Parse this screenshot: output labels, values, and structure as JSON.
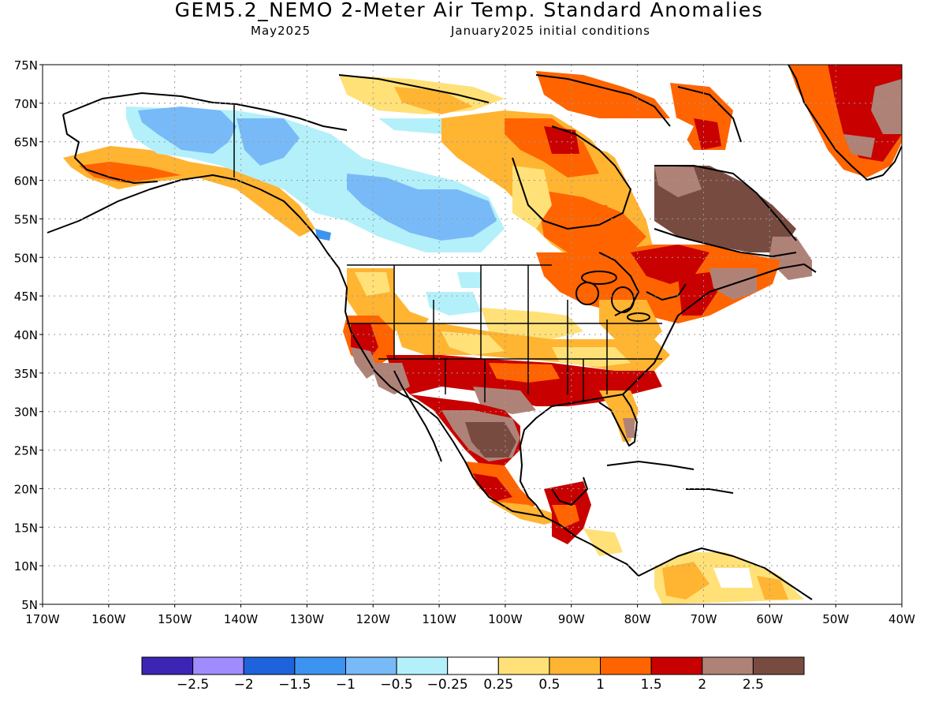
{
  "header": {
    "title": "GEM5.2_NEMO 2-Meter Air Temp. Standard Anomalies",
    "valid_month": "May2025",
    "init_conditions": "January2025 initial conditions"
  },
  "map": {
    "projection": "lat-lon",
    "lon_range": [
      -170,
      -40
    ],
    "lat_range": [
      5,
      75
    ],
    "gridlines": "dotted",
    "lat_labels": [
      "75N",
      "70N",
      "65N",
      "60N",
      "55N",
      "50N",
      "45N",
      "40N",
      "35N",
      "30N",
      "25N",
      "20N",
      "15N",
      "10N",
      "5N"
    ],
    "lon_labels": [
      "170W",
      "160W",
      "150W",
      "140W",
      "130W",
      "120W",
      "110W",
      "100W",
      "90W",
      "80W",
      "70W",
      "60W",
      "50W",
      "40W"
    ]
  },
  "colorbar": {
    "colors": [
      "#3c24b4",
      "#a08cff",
      "#1f63dc",
      "#3c94f0",
      "#78baf8",
      "#b4f0fa",
      "#ffffff",
      "#ffe178",
      "#ffb432",
      "#ff6400",
      "#c80000",
      "#af8278",
      "#784b41"
    ],
    "labels": [
      "-2.5",
      "-2",
      "-1.5",
      "-1",
      "-0.5",
      "-0.25",
      "0.25",
      "0.5",
      "1",
      "1.5",
      "2",
      "2.5"
    ]
  },
  "anomaly_regions": [
    {
      "name": "alaska-north-slope",
      "level": "-1"
    },
    {
      "name": "alaska-interior",
      "level": "-0.5"
    },
    {
      "name": "alaska-south",
      "level": "1"
    },
    {
      "name": "western-canada",
      "level": "-1"
    },
    {
      "name": "northern-plains",
      "level": "-0.5"
    },
    {
      "name": "hudson-bay-region",
      "level": "1.5"
    },
    {
      "name": "quebec",
      "level": "2.5"
    },
    {
      "name": "northeast-us",
      "level": "2"
    },
    {
      "name": "southern-us",
      "level": "2"
    },
    {
      "name": "southwest-us",
      "level": "2"
    },
    {
      "name": "northern-mexico",
      "level": "2.5"
    },
    {
      "name": "southern-mexico",
      "level": "1.5"
    },
    {
      "name": "central-america",
      "level": "2"
    },
    {
      "name": "greenland",
      "level": "2"
    },
    {
      "name": "northern-south-america",
      "level": "0.5"
    }
  ]
}
